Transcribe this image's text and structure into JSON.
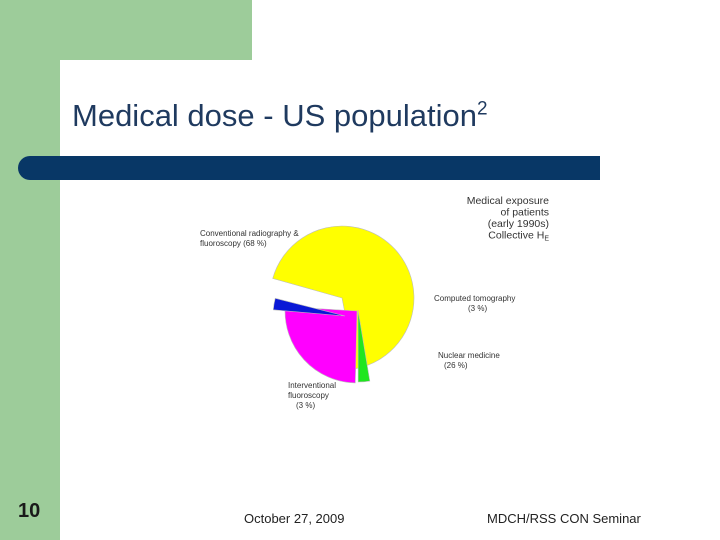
{
  "slide": {
    "title": "Medical dose - US population",
    "title_superscript": "2",
    "number": "10",
    "date": "October 27, 2009",
    "source": "MDCH/RSS CON Seminar"
  },
  "colors": {
    "left_band": "#9dcc9a",
    "title_bar": "#083766",
    "title_text": "#1f3a5f"
  },
  "chart_data": {
    "type": "pie",
    "title_lines": [
      "Medical exposure",
      "of patients",
      "(early 1990s)",
      "Collective H"
    ],
    "title_subscript": "E",
    "slices": [
      {
        "name": "Conventional radiography & fluoroscopy",
        "label_lines": [
          "Conventional radiography &",
          "fluoroscopy (68 %)"
        ],
        "value": 68,
        "color": "#ffff00"
      },
      {
        "name": "Computed tomography",
        "label_lines": [
          "Computed tomography",
          "(3 %)"
        ],
        "value": 3,
        "color": "#1fe61f"
      },
      {
        "name": "Nuclear medicine",
        "label_lines": [
          "Nuclear medicine",
          "(26 %)"
        ],
        "value": 26,
        "color": "#ff00ff"
      },
      {
        "name": "Interventional fluoroscopy",
        "label_lines": [
          "Interventional",
          "fluoroscopy",
          "(3 %)"
        ],
        "value": 3,
        "color": "#0a18d6"
      }
    ]
  }
}
